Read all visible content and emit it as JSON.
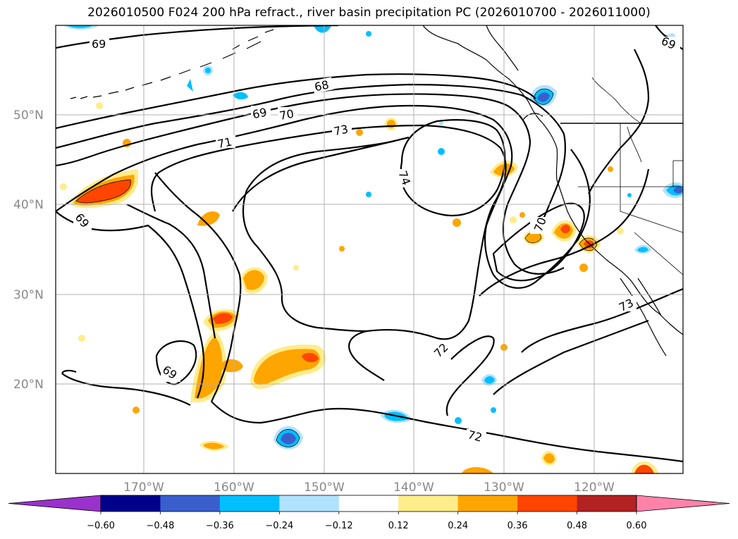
{
  "title": "2026010500 F024 200 hPa refract., river basin precipitation PC (2026010700 - 2026011000)",
  "map": {
    "lat_labels": [
      "50°N",
      "40°N",
      "30°N",
      "20°N"
    ],
    "lon_labels": [
      "170°W",
      "160°W",
      "150°W",
      "140°W",
      "130°W",
      "120°W"
    ],
    "contour_labels": [
      "69",
      "68",
      "69",
      "70",
      "71",
      "73",
      "74",
      "69",
      "70",
      "69",
      "72",
      "72",
      "73",
      "69"
    ]
  },
  "colorbar": {
    "ticks": [
      "−0.60",
      "−0.48",
      "−0.36",
      "−0.24",
      "−0.12",
      "0.12",
      "0.24",
      "0.36",
      "0.48",
      "0.60"
    ],
    "colors": [
      "#9932CC",
      "#00008B",
      "#3A5FCD",
      "#00BFFF",
      "#B0E2FF",
      "#FFFFFF",
      "#FFEC8B",
      "#FFA500",
      "#FF4500",
      "#B22222",
      "#FF82AB"
    ]
  }
}
